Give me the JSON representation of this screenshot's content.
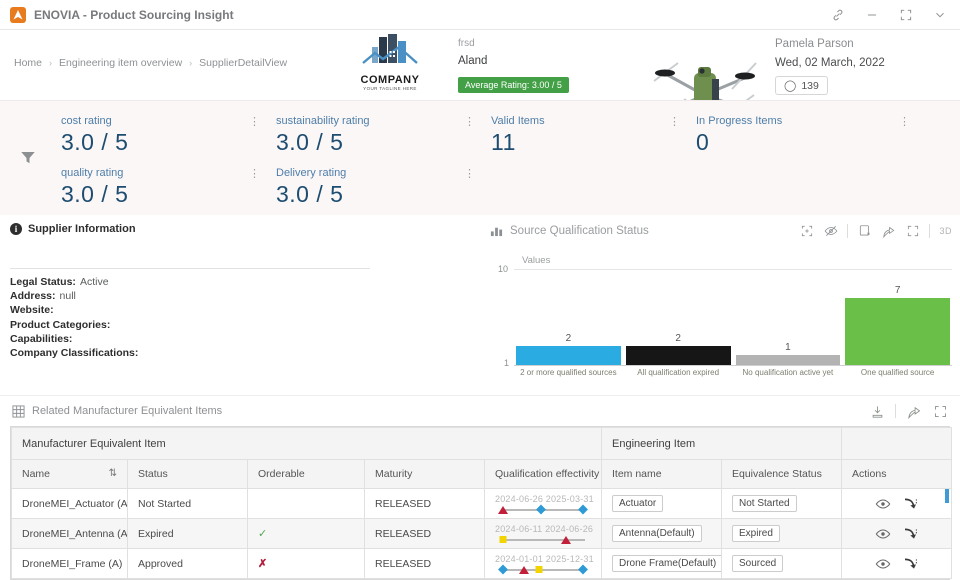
{
  "window": {
    "title": "ENOVIA - Product Sourcing Insight"
  },
  "breadcrumb": [
    "Home",
    "Engineering item overview",
    "SupplierDetailView"
  ],
  "header": {
    "company_logo_name": "COMPANY",
    "company_logo_tagline": "YOUR TAGLINE HERE",
    "company_code": "frsd",
    "company_location": "Aland",
    "rating_badge": "Average Rating: 3.00 / 5",
    "rating_badge_color": "#43a047",
    "user_name": "Pamela Parson",
    "date": "Wed, 02 March, 2022",
    "count_badge": "139"
  },
  "kpis": [
    {
      "label": "cost rating",
      "value": "3.0 / 5"
    },
    {
      "label": "sustainability rating",
      "value": "3.0 / 5"
    },
    {
      "label": "Valid Items",
      "value": "11"
    },
    {
      "label": "In Progress Items",
      "value": "0"
    },
    {
      "label": "quality rating",
      "value": "3.0 / 5"
    },
    {
      "label": "Delivery rating",
      "value": "3.0 / 5"
    }
  ],
  "supplier_info": {
    "title": "Supplier Information",
    "fields": [
      {
        "label": "Legal Status:",
        "value": "Active"
      },
      {
        "label": "Address:",
        "value": "null"
      },
      {
        "label": "Website:",
        "value": ""
      },
      {
        "label": "Product Categories:",
        "value": ""
      },
      {
        "label": "Capabilities:",
        "value": ""
      },
      {
        "label": "Company Classifications:",
        "value": ""
      }
    ]
  },
  "chart_panel": {
    "title": "Source Qualification Status",
    "toolbar_3d_label": "3D"
  },
  "chart_data": {
    "type": "bar",
    "title": "Source Qualification Status",
    "ylabel": "Values",
    "ylim": [
      1,
      10
    ],
    "y_ticks": [
      "10",
      "1"
    ],
    "grid": true,
    "categories": [
      "2 or more qualified sources",
      "All qualification expired",
      "No qualification active yet",
      "One qualified source"
    ],
    "values": [
      2,
      2,
      1,
      7
    ],
    "colors": [
      "#2aabe2",
      "#161616",
      "#b3b3b3",
      "#69bf47"
    ]
  },
  "table_section": {
    "title": "Related Manufacturer Equivalent Items",
    "group_headers": [
      {
        "label": "Manufacturer Equivalent Item",
        "span": 5
      },
      {
        "label": "Engineering Item",
        "span": 2
      },
      {
        "label": "",
        "span": 1
      }
    ],
    "columns": [
      "Name",
      "Status",
      "Orderable",
      "Maturity",
      "Qualification effectivity",
      "Item name",
      "Equivalence Status",
      "Actions"
    ],
    "rows": [
      {
        "name": "DroneMEI_Actuator (A)",
        "status": "Not Started",
        "orderable": "",
        "maturity": "RELEASED",
        "effectivity_dates": "2024-06-26  2025-03-31",
        "effectivity_markers": [
          {
            "shape": "triangle",
            "pos": 4
          },
          {
            "shape": "diamond",
            "pos": 48
          },
          {
            "shape": "diamond",
            "pos": 96
          }
        ],
        "item_name": "Actuator",
        "equivalence_status": "Not Started"
      },
      {
        "name": "DroneMEI_Antenna (A)",
        "status": "Expired",
        "orderable": "check",
        "maturity": "RELEASED",
        "effectivity_dates": "2024-06-11  2024-06-26",
        "effectivity_markers": [
          {
            "shape": "square",
            "pos": 5
          },
          {
            "shape": "triangle",
            "pos": 76
          }
        ],
        "item_name": "Antenna(Default)",
        "equivalence_status": "Expired"
      },
      {
        "name": "DroneMEI_Frame (A)",
        "status": "Approved",
        "orderable": "cross",
        "maturity": "RELEASED",
        "effectivity_dates": "2024-01-01  2025-12-31",
        "effectivity_markers": [
          {
            "shape": "diamond",
            "pos": 4
          },
          {
            "shape": "triangle",
            "pos": 28
          },
          {
            "shape": "square",
            "pos": 46
          },
          {
            "shape": "diamond",
            "pos": 96
          }
        ],
        "item_name": "Drone Frame(Default)",
        "equivalence_status": "Sourced"
      }
    ]
  }
}
